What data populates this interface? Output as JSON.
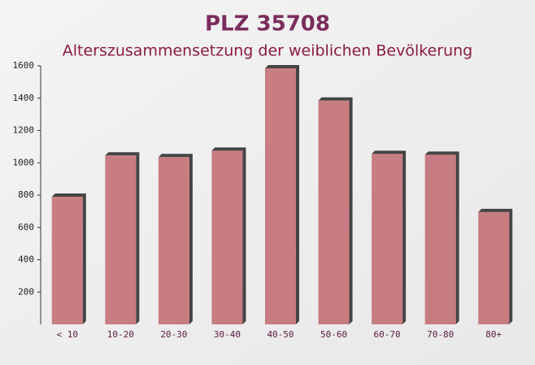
{
  "chart_data": {
    "type": "bar",
    "title": "PLZ 35708",
    "subtitle": "Alterszusammensetzung der weiblichen Bevölkerung",
    "categories": [
      "< 10",
      "10-20",
      "20-30",
      "30-40",
      "40-50",
      "50-60",
      "60-70",
      "70-80",
      "80+"
    ],
    "values": [
      790,
      1045,
      1035,
      1075,
      1585,
      1385,
      1055,
      1050,
      695
    ],
    "color": "#c0686e",
    "ylim": [
      0,
      1600
    ],
    "yticks": [
      200,
      400,
      600,
      800,
      1000,
      1200,
      1400,
      1600
    ],
    "grid": false
  }
}
